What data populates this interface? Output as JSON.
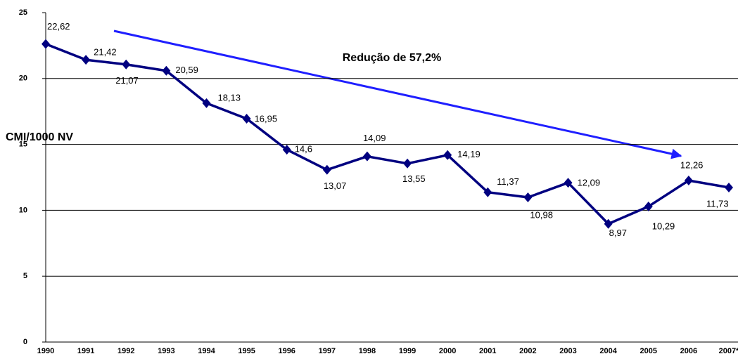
{
  "chart_data": {
    "type": "line",
    "y_label": "CMI/1000 NV",
    "annotation": "Redução de 57,2%",
    "categories": [
      "1990",
      "1991",
      "1992",
      "1993",
      "1994",
      "1995",
      "1996",
      "1997",
      "1998",
      "1999",
      "2000",
      "2001",
      "2002",
      "2003",
      "2004",
      "2005",
      "2006",
      "2007*"
    ],
    "series": [
      {
        "name": "CMI/1000 NV",
        "color": "#000080",
        "values": [
          22.62,
          21.42,
          21.07,
          20.59,
          18.13,
          16.95,
          14.6,
          13.07,
          14.09,
          13.55,
          14.19,
          11.37,
          10.98,
          12.09,
          8.97,
          10.29,
          12.26,
          11.73
        ],
        "value_labels": [
          "22,62",
          "21,42",
          "21,07",
          "20,59",
          "18,13",
          "16,95",
          "14,6",
          "13,07",
          "14,09",
          "13,55",
          "14,19",
          "11,37",
          "10,98",
          "12,09",
          "8,97",
          "10,29",
          "12,26",
          "11,73"
        ]
      }
    ],
    "ylim": [
      0,
      25
    ],
    "yticks": [
      0,
      5,
      10,
      15,
      20,
      25
    ],
    "grid": true
  }
}
